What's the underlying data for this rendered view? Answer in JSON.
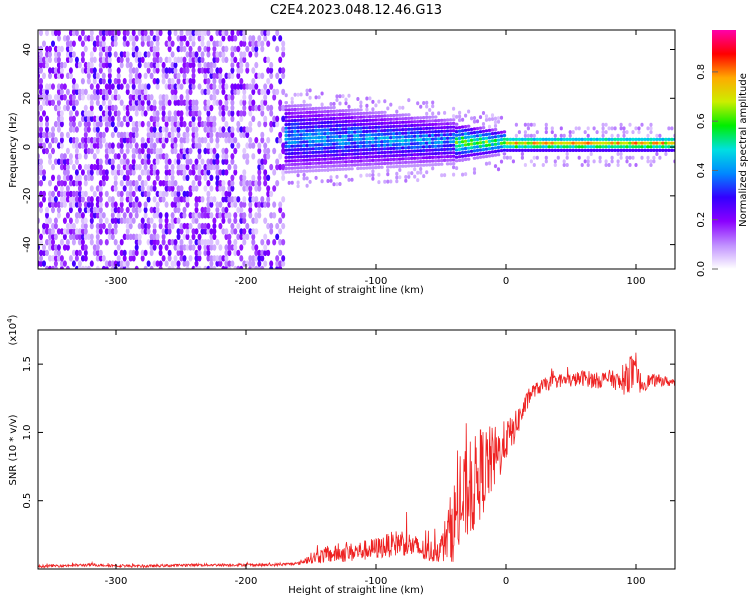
{
  "title": "C2E4.2023.048.12.46.G13",
  "colors": {
    "snr_line": "#ee2222",
    "axis": "#000000"
  },
  "chart_data": [
    {
      "type": "heatmap",
      "name": "spectrogram",
      "xlabel": "Height of straight line (km)",
      "ylabel": "Frequency (Hz)",
      "xlim": [
        -360,
        130
      ],
      "ylim": [
        -50,
        48
      ],
      "xticks": [
        -300,
        -200,
        -100,
        0,
        100
      ],
      "yticks": [
        -40,
        -20,
        0,
        20,
        40
      ],
      "colorbar": {
        "label": "Normalized spectral amplitude",
        "range": [
          0,
          0.97
        ],
        "ticks": [
          0.0,
          0.2,
          0.4,
          0.6,
          0.8
        ],
        "tick_labels": [
          "0.0",
          "0.2",
          "0.4",
          "0.6",
          "0.8"
        ],
        "colormap": [
          "#ffffff",
          "#c090ff",
          "#8a00ff",
          "#3300ff",
          "#0088ff",
          "#00e0e0",
          "#00ee00",
          "#ccee00",
          "#ffaa00",
          "#ff0000",
          "#ff00aa"
        ]
      },
      "regions": [
        {
          "x": [
            -360,
            -170
          ],
          "freq_range": [
            -50,
            48
          ],
          "amplitude": "low, 0.0-0.3, broadband noise"
        },
        {
          "x": [
            -170,
            -40
          ],
          "freq_center": 4,
          "freq_halfwidth": 12,
          "amplitude": "0.2-0.5"
        },
        {
          "x": [
            -40,
            0
          ],
          "freq_center": 2,
          "freq_halfwidth": 5,
          "amplitude": "0.4-0.8"
        },
        {
          "x": [
            0,
            130
          ],
          "freq_center": 1.5,
          "freq_halfwidth": 1.5,
          "amplitude": "0.5-0.9"
        }
      ]
    },
    {
      "type": "line",
      "name": "snr",
      "xlabel": "Height of straight line (km)",
      "ylabel": "SNR (10 * v/v)",
      "scale_label": "(x10",
      "scale_exponent": "4",
      "xlim": [
        -360,
        130
      ],
      "ylim": [
        0,
        1.75
      ],
      "xticks": [
        -300,
        -200,
        -100,
        0,
        100
      ],
      "yticks": [
        0.5,
        1.0,
        1.5
      ],
      "ytick_labels": [
        "0.5",
        "1.0",
        "1.5"
      ],
      "x": [
        -360,
        -320,
        -280,
        -240,
        -200,
        -180,
        -160,
        -150,
        -140,
        -120,
        -100,
        -80,
        -60,
        -50,
        -45,
        -40,
        -35,
        -30,
        -25,
        -20,
        -15,
        -10,
        -5,
        0,
        5,
        10,
        20,
        30,
        40,
        50,
        60,
        70,
        80,
        90,
        95,
        100,
        105,
        110,
        120,
        130
      ],
      "y": [
        0.02,
        0.03,
        0.02,
        0.03,
        0.03,
        0.03,
        0.04,
        0.08,
        0.1,
        0.12,
        0.15,
        0.2,
        0.12,
        0.15,
        0.25,
        0.35,
        0.45,
        0.55,
        0.6,
        0.7,
        0.75,
        0.8,
        0.85,
        0.95,
        1.0,
        1.1,
        1.3,
        1.35,
        1.38,
        1.38,
        1.4,
        1.38,
        1.4,
        1.35,
        1.45,
        1.4,
        1.35,
        1.38,
        1.38,
        1.36
      ],
      "noise_amplitude": [
        0.01,
        0.01,
        0.01,
        0.01,
        0.01,
        0.01,
        0.01,
        0.04,
        0.06,
        0.07,
        0.08,
        0.1,
        0.08,
        0.1,
        0.2,
        0.3,
        0.35,
        0.35,
        0.35,
        0.35,
        0.3,
        0.25,
        0.2,
        0.15,
        0.12,
        0.1,
        0.05,
        0.05,
        0.05,
        0.05,
        0.06,
        0.06,
        0.06,
        0.08,
        0.15,
        0.12,
        0.06,
        0.05,
        0.04,
        0.03
      ]
    }
  ]
}
